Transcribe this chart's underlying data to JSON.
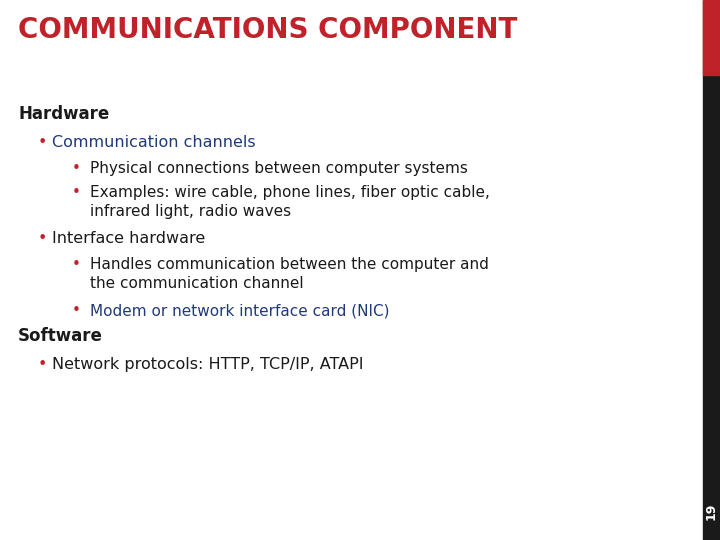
{
  "title": "COMMUNICATIONS COMPONENT",
  "title_color": "#C0222A",
  "title_fontsize": 20,
  "bg_color": "#FFFFFF",
  "right_bar_color_top": "#C0222A",
  "right_bar_color_bottom": "#1a1a1a",
  "page_number": "19",
  "page_number_color": "#FFFFFF",
  "content": [
    {
      "level": 0,
      "text": "Hardware",
      "color": "#1a1a1a",
      "bold": true,
      "bullet": false,
      "blue": false
    },
    {
      "level": 1,
      "text": "Communication channels",
      "color": "#1F3A7A",
      "bold": false,
      "bullet": true,
      "blue": true
    },
    {
      "level": 2,
      "text": "Physical connections between computer systems",
      "color": "#1a1a1a",
      "bold": false,
      "bullet": true,
      "blue": false
    },
    {
      "level": 2,
      "text": "Examples: wire cable, phone lines, fiber optic cable,\ninfrared light, radio waves",
      "color": "#1a1a1a",
      "bold": false,
      "bullet": true,
      "blue": false
    },
    {
      "level": 1,
      "text": "Interface hardware",
      "color": "#1a1a1a",
      "bold": false,
      "bullet": true,
      "blue": false
    },
    {
      "level": 2,
      "text": "Handles communication between the computer and\nthe communication channel",
      "color": "#1a1a1a",
      "bold": false,
      "bullet": true,
      "blue": false
    },
    {
      "level": 2,
      "text": "Modem or network interface card (NIC)",
      "color": "#1F3A7A",
      "bold": false,
      "bullet": true,
      "blue": true
    },
    {
      "level": 0,
      "text": "Software",
      "color": "#1a1a1a",
      "bold": true,
      "bullet": false,
      "blue": false
    },
    {
      "level": 1,
      "text": "Network protocols: HTTP, TCP/IP, ATAPI",
      "color": "#1a1a1a",
      "bold": false,
      "bullet": true,
      "blue": false
    }
  ],
  "bullet_color": "#C0222A",
  "body_fontsize": 11,
  "header_fontsize": 12
}
